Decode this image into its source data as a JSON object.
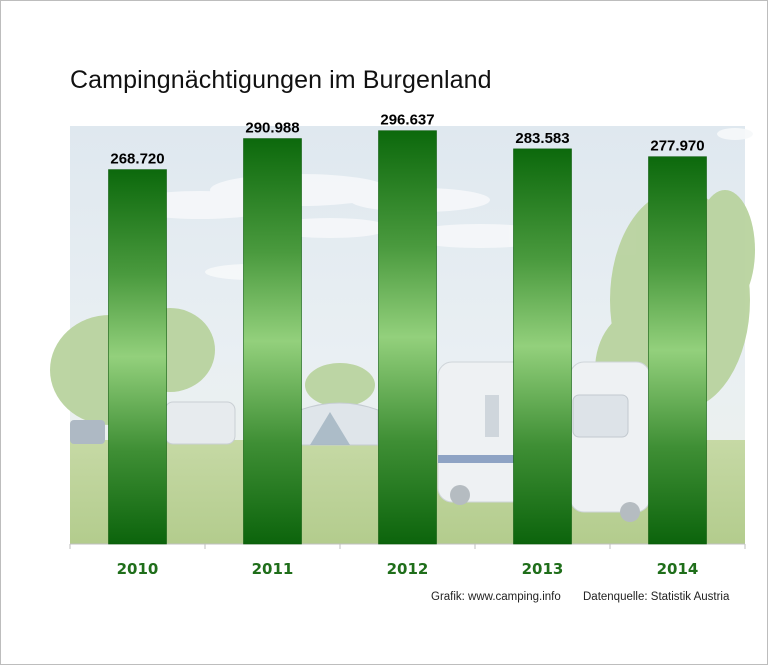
{
  "chart_data": {
    "type": "bar",
    "title": "Campingnächtigungen im Burgenland",
    "categories": [
      "2010",
      "2011",
      "2012",
      "2013",
      "2014"
    ],
    "values": [
      268720,
      290988,
      296637,
      283583,
      277970
    ],
    "value_labels": [
      "268.720",
      "290.988",
      "296.637",
      "283.583",
      "277.970"
    ],
    "xlabel": "",
    "ylabel": "",
    "ylim": [
      0,
      300000
    ],
    "grid": false,
    "legend": "none",
    "colors": {
      "bar_dark": "#0e6b0e",
      "bar_light": "#8fcf7a",
      "tick_label": "#1f6e1a",
      "value_label": "#000000"
    }
  },
  "footer": {
    "grafik": "Grafik: www.camping.info",
    "quelle": "Datenquelle: Statistik Austria"
  },
  "background": {
    "description_icon": "campsite-photo"
  }
}
